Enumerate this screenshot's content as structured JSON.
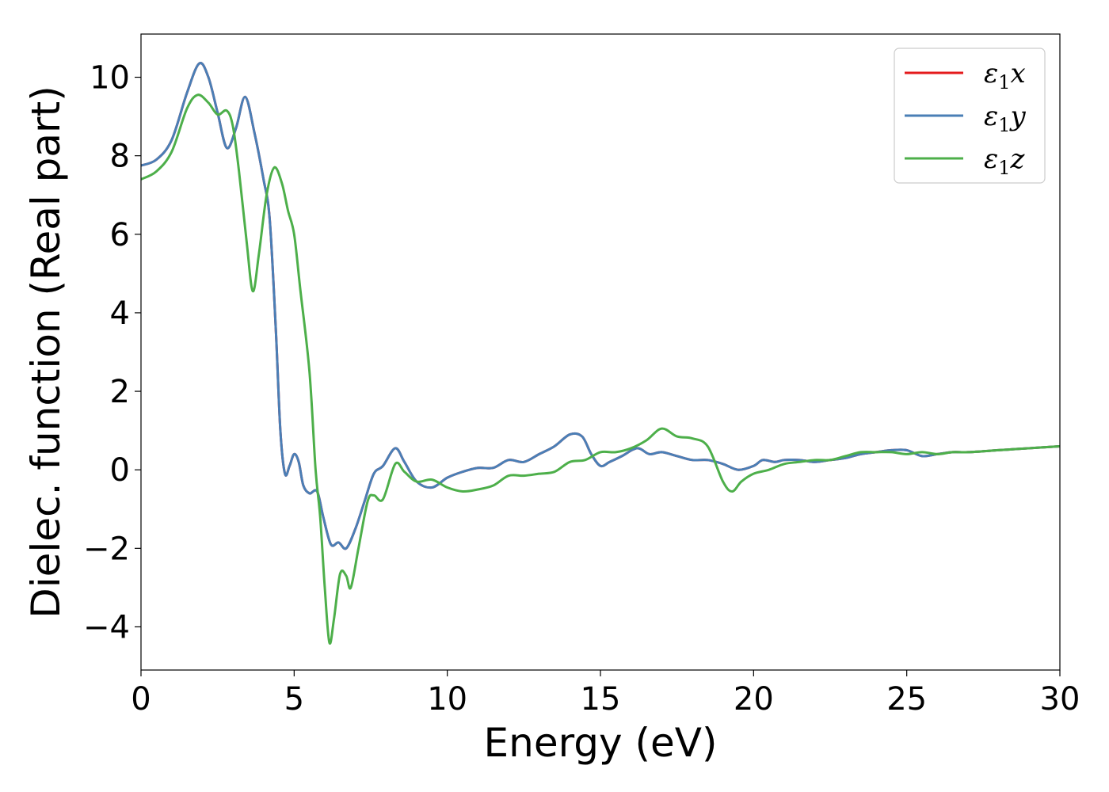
{
  "chart_data": {
    "type": "line",
    "xlabel": "Energy (eV)",
    "ylabel": "Dielec. function (Real part)",
    "xlim": [
      0,
      30
    ],
    "ylim": [
      -5.1,
      11.1
    ],
    "xticks": [
      0,
      5,
      10,
      15,
      20,
      25,
      30
    ],
    "yticks": [
      -4,
      -2,
      0,
      2,
      4,
      6,
      8,
      10
    ],
    "grid": false,
    "legend_position": "top-right",
    "series": [
      {
        "name": "ε1x",
        "legend_symbol": "ε",
        "legend_sub": "1",
        "legend_var": "x",
        "color": "#e41a1c",
        "points": [
          [
            0,
            7.75
          ],
          [
            0.5,
            7.9
          ],
          [
            1.0,
            8.4
          ],
          [
            1.5,
            9.6
          ],
          [
            1.9,
            10.35
          ],
          [
            2.2,
            10.0
          ],
          [
            2.5,
            9.1
          ],
          [
            2.8,
            8.2
          ],
          [
            3.1,
            8.7
          ],
          [
            3.4,
            9.5
          ],
          [
            3.7,
            8.6
          ],
          [
            4.0,
            7.4
          ],
          [
            4.2,
            6.4
          ],
          [
            4.4,
            3.6
          ],
          [
            4.55,
            1.0
          ],
          [
            4.7,
            -0.1
          ],
          [
            4.85,
            0.1
          ],
          [
            5.0,
            0.4
          ],
          [
            5.15,
            0.2
          ],
          [
            5.3,
            -0.4
          ],
          [
            5.5,
            -0.6
          ],
          [
            5.75,
            -0.55
          ],
          [
            5.95,
            -1.2
          ],
          [
            6.2,
            -1.9
          ],
          [
            6.45,
            -1.85
          ],
          [
            6.7,
            -2.0
          ],
          [
            7.0,
            -1.5
          ],
          [
            7.3,
            -0.8
          ],
          [
            7.6,
            -0.1
          ],
          [
            7.9,
            0.1
          ],
          [
            8.3,
            0.55
          ],
          [
            8.6,
            0.2
          ],
          [
            9.0,
            -0.3
          ],
          [
            9.5,
            -0.45
          ],
          [
            10.0,
            -0.2
          ],
          [
            10.5,
            -0.05
          ],
          [
            11.0,
            0.05
          ],
          [
            11.5,
            0.05
          ],
          [
            12.0,
            0.25
          ],
          [
            12.5,
            0.2
          ],
          [
            13.0,
            0.4
          ],
          [
            13.5,
            0.6
          ],
          [
            14.0,
            0.9
          ],
          [
            14.4,
            0.85
          ],
          [
            14.7,
            0.4
          ],
          [
            15.0,
            0.1
          ],
          [
            15.3,
            0.2
          ],
          [
            15.7,
            0.35
          ],
          [
            16.2,
            0.55
          ],
          [
            16.6,
            0.4
          ],
          [
            17.0,
            0.45
          ],
          [
            17.5,
            0.35
          ],
          [
            18.0,
            0.25
          ],
          [
            18.5,
            0.25
          ],
          [
            19.0,
            0.15
          ],
          [
            19.5,
            0.0
          ],
          [
            20.0,
            0.1
          ],
          [
            20.3,
            0.25
          ],
          [
            20.7,
            0.2
          ],
          [
            21.0,
            0.25
          ],
          [
            21.5,
            0.25
          ],
          [
            22.0,
            0.2
          ],
          [
            22.5,
            0.25
          ],
          [
            23.0,
            0.3
          ],
          [
            23.5,
            0.4
          ],
          [
            24.0,
            0.45
          ],
          [
            24.5,
            0.5
          ],
          [
            25.0,
            0.5
          ],
          [
            25.5,
            0.35
          ],
          [
            26.0,
            0.4
          ],
          [
            26.5,
            0.45
          ],
          [
            27.0,
            0.45
          ],
          [
            28.0,
            0.5
          ],
          [
            29.0,
            0.55
          ],
          [
            30.0,
            0.6
          ]
        ]
      },
      {
        "name": "ε1y",
        "legend_symbol": "ε",
        "legend_sub": "1",
        "legend_var": "y",
        "color": "#4a7fb6",
        "points": [
          [
            0,
            7.75
          ],
          [
            0.5,
            7.9
          ],
          [
            1.0,
            8.4
          ],
          [
            1.5,
            9.6
          ],
          [
            1.9,
            10.35
          ],
          [
            2.2,
            10.0
          ],
          [
            2.5,
            9.1
          ],
          [
            2.8,
            8.2
          ],
          [
            3.1,
            8.7
          ],
          [
            3.4,
            9.5
          ],
          [
            3.7,
            8.6
          ],
          [
            4.0,
            7.4
          ],
          [
            4.2,
            6.4
          ],
          [
            4.4,
            3.6
          ],
          [
            4.55,
            1.0
          ],
          [
            4.7,
            -0.1
          ],
          [
            4.85,
            0.1
          ],
          [
            5.0,
            0.4
          ],
          [
            5.15,
            0.2
          ],
          [
            5.3,
            -0.4
          ],
          [
            5.5,
            -0.6
          ],
          [
            5.75,
            -0.55
          ],
          [
            5.95,
            -1.2
          ],
          [
            6.2,
            -1.9
          ],
          [
            6.45,
            -1.85
          ],
          [
            6.7,
            -2.0
          ],
          [
            7.0,
            -1.5
          ],
          [
            7.3,
            -0.8
          ],
          [
            7.6,
            -0.1
          ],
          [
            7.9,
            0.1
          ],
          [
            8.3,
            0.55
          ],
          [
            8.6,
            0.2
          ],
          [
            9.0,
            -0.3
          ],
          [
            9.5,
            -0.45
          ],
          [
            10.0,
            -0.2
          ],
          [
            10.5,
            -0.05
          ],
          [
            11.0,
            0.05
          ],
          [
            11.5,
            0.05
          ],
          [
            12.0,
            0.25
          ],
          [
            12.5,
            0.2
          ],
          [
            13.0,
            0.4
          ],
          [
            13.5,
            0.6
          ],
          [
            14.0,
            0.9
          ],
          [
            14.4,
            0.85
          ],
          [
            14.7,
            0.4
          ],
          [
            15.0,
            0.1
          ],
          [
            15.3,
            0.2
          ],
          [
            15.7,
            0.35
          ],
          [
            16.2,
            0.55
          ],
          [
            16.6,
            0.4
          ],
          [
            17.0,
            0.45
          ],
          [
            17.5,
            0.35
          ],
          [
            18.0,
            0.25
          ],
          [
            18.5,
            0.25
          ],
          [
            19.0,
            0.15
          ],
          [
            19.5,
            0.0
          ],
          [
            20.0,
            0.1
          ],
          [
            20.3,
            0.25
          ],
          [
            20.7,
            0.2
          ],
          [
            21.0,
            0.25
          ],
          [
            21.5,
            0.25
          ],
          [
            22.0,
            0.2
          ],
          [
            22.5,
            0.25
          ],
          [
            23.0,
            0.3
          ],
          [
            23.5,
            0.4
          ],
          [
            24.0,
            0.45
          ],
          [
            24.5,
            0.5
          ],
          [
            25.0,
            0.5
          ],
          [
            25.5,
            0.35
          ],
          [
            26.0,
            0.4
          ],
          [
            26.5,
            0.45
          ],
          [
            27.0,
            0.45
          ],
          [
            28.0,
            0.5
          ],
          [
            29.0,
            0.55
          ],
          [
            30.0,
            0.6
          ]
        ]
      },
      {
        "name": "ε1z",
        "legend_symbol": "ε",
        "legend_sub": "1",
        "legend_var": "z",
        "color": "#4daf4a",
        "points": [
          [
            0,
            7.4
          ],
          [
            0.5,
            7.6
          ],
          [
            1.0,
            8.1
          ],
          [
            1.5,
            9.2
          ],
          [
            1.85,
            9.55
          ],
          [
            2.2,
            9.35
          ],
          [
            2.5,
            9.05
          ],
          [
            2.8,
            9.15
          ],
          [
            3.0,
            8.75
          ],
          [
            3.2,
            7.6
          ],
          [
            3.45,
            5.8
          ],
          [
            3.65,
            4.55
          ],
          [
            3.85,
            5.5
          ],
          [
            4.1,
            7.0
          ],
          [
            4.35,
            7.7
          ],
          [
            4.6,
            7.3
          ],
          [
            4.8,
            6.6
          ],
          [
            5.0,
            6.0
          ],
          [
            5.2,
            4.6
          ],
          [
            5.5,
            2.5
          ],
          [
            5.7,
            0.0
          ],
          [
            5.85,
            -1.2
          ],
          [
            6.0,
            -3.0
          ],
          [
            6.15,
            -4.4
          ],
          [
            6.3,
            -3.8
          ],
          [
            6.5,
            -2.65
          ],
          [
            6.7,
            -2.7
          ],
          [
            6.85,
            -3.0
          ],
          [
            7.1,
            -2.0
          ],
          [
            7.4,
            -0.8
          ],
          [
            7.6,
            -0.65
          ],
          [
            7.9,
            -0.75
          ],
          [
            8.3,
            0.15
          ],
          [
            8.6,
            -0.05
          ],
          [
            9.0,
            -0.3
          ],
          [
            9.5,
            -0.25
          ],
          [
            10.0,
            -0.45
          ],
          [
            10.5,
            -0.55
          ],
          [
            11.0,
            -0.5
          ],
          [
            11.5,
            -0.4
          ],
          [
            12.0,
            -0.15
          ],
          [
            12.5,
            -0.15
          ],
          [
            13.0,
            -0.1
          ],
          [
            13.5,
            -0.05
          ],
          [
            14.0,
            0.2
          ],
          [
            14.5,
            0.25
          ],
          [
            15.0,
            0.45
          ],
          [
            15.5,
            0.45
          ],
          [
            16.0,
            0.55
          ],
          [
            16.5,
            0.75
          ],
          [
            17.0,
            1.05
          ],
          [
            17.5,
            0.85
          ],
          [
            18.0,
            0.8
          ],
          [
            18.5,
            0.6
          ],
          [
            19.0,
            -0.3
          ],
          [
            19.3,
            -0.55
          ],
          [
            19.6,
            -0.3
          ],
          [
            20.0,
            -0.1
          ],
          [
            20.5,
            0.0
          ],
          [
            21.0,
            0.15
          ],
          [
            21.5,
            0.2
          ],
          [
            22.0,
            0.25
          ],
          [
            22.5,
            0.25
          ],
          [
            23.0,
            0.35
          ],
          [
            23.5,
            0.45
          ],
          [
            24.0,
            0.45
          ],
          [
            24.5,
            0.45
          ],
          [
            25.0,
            0.4
          ],
          [
            25.5,
            0.45
          ],
          [
            26.0,
            0.4
          ],
          [
            26.5,
            0.45
          ],
          [
            27.0,
            0.45
          ],
          [
            28.0,
            0.5
          ],
          [
            29.0,
            0.55
          ],
          [
            30.0,
            0.6
          ]
        ]
      }
    ]
  }
}
